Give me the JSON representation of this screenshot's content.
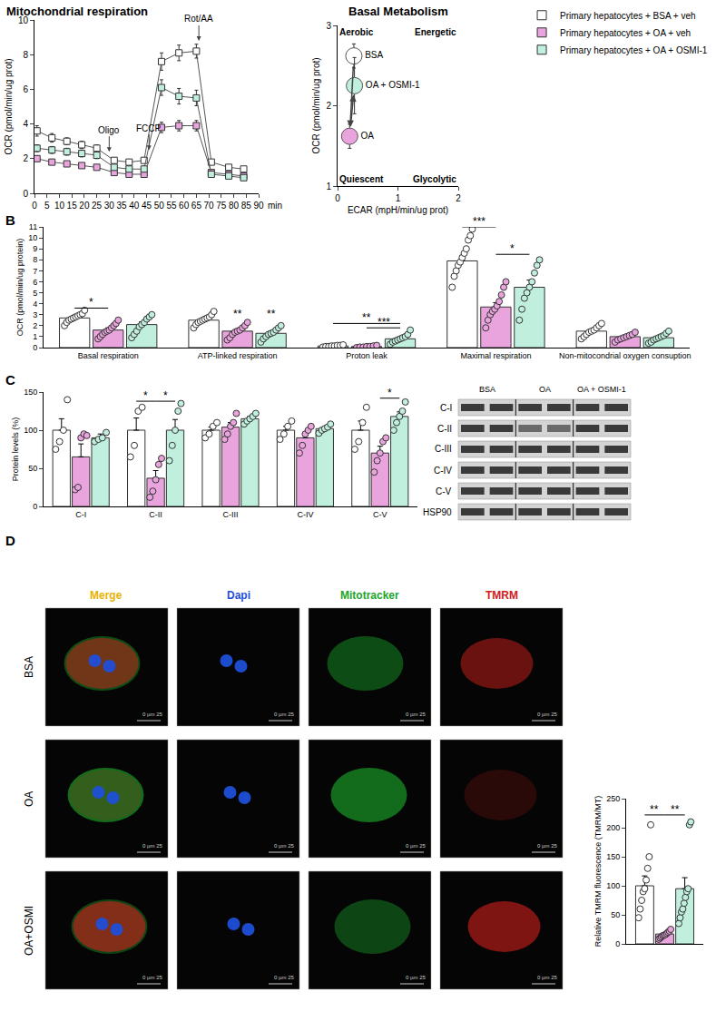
{
  "chart_data": [
    {
      "type": "line",
      "title": "Mitochondrial respiration",
      "x_label": "min",
      "y_label": "OCR (pmol/min/ug prot)",
      "x": [
        1,
        7,
        13,
        19,
        25,
        32,
        38,
        44,
        51,
        58,
        65,
        71,
        78,
        84
      ],
      "xlim": [
        0,
        90
      ],
      "xticks": [
        0,
        5,
        10,
        15,
        20,
        25,
        30,
        35,
        40,
        45,
        50,
        55,
        60,
        65,
        70,
        75,
        80,
        85,
        90
      ],
      "ylim": [
        0,
        10
      ],
      "yticks": [
        0,
        2,
        4,
        6,
        8,
        10
      ],
      "grid": false,
      "marker": "square",
      "legend": "top right",
      "series": [
        {
          "name": "Primary hepatocytes + BSA + veh",
          "color": "#ffffff",
          "values": [
            3.6,
            3.2,
            3.0,
            2.8,
            2.6,
            1.9,
            1.8,
            1.9,
            7.6,
            8.1,
            8.2,
            1.8,
            1.5,
            1.4
          ],
          "errors": [
            0.3,
            0.25,
            0.2,
            0.2,
            0.2,
            0.15,
            0.15,
            0.15,
            0.5,
            0.45,
            0.4,
            0.15,
            0.15,
            0.15
          ]
        },
        {
          "name": "Primary hepatocytes + OA + veh",
          "color": "#e9a4de",
          "values": [
            2.0,
            1.8,
            1.7,
            1.6,
            1.5,
            1.2,
            1.1,
            1.1,
            3.8,
            3.9,
            3.9,
            1.2,
            1.1,
            1.0
          ],
          "errors": [
            0.15,
            0.15,
            0.12,
            0.12,
            0.12,
            0.1,
            0.1,
            0.1,
            0.3,
            0.3,
            0.3,
            0.1,
            0.1,
            0.1
          ]
        },
        {
          "name": "Primary hepatocytes + OA + OSMI-1",
          "color": "#c1efde",
          "values": [
            2.6,
            2.5,
            2.4,
            2.3,
            2.2,
            1.5,
            1.4,
            1.4,
            6.1,
            5.6,
            5.5,
            1.1,
            1.0,
            0.9
          ],
          "errors": [
            0.2,
            0.2,
            0.2,
            0.2,
            0.2,
            0.15,
            0.15,
            0.15,
            0.45,
            0.45,
            0.45,
            0.1,
            0.1,
            0.1
          ]
        }
      ],
      "injections": [
        {
          "label": "Oligo",
          "x": 30,
          "y": 2.4
        },
        {
          "label": "FCCP",
          "x": 46,
          "y": 2.5
        },
        {
          "label": "Rot/AA",
          "x": 66,
          "y": 8.8
        }
      ]
    },
    {
      "type": "scatter",
      "title": "Basal Metabolism",
      "x_label": "ECAR (mpH/min/ug prot)",
      "y_label": "OCR (pmol/min/ug prot)",
      "xlim": [
        0,
        2
      ],
      "xticks": [
        0,
        1,
        2
      ],
      "ylim": [
        1,
        3
      ],
      "yticks": [
        1,
        2,
        3
      ],
      "grid": false,
      "marker": "circle",
      "series": [
        {
          "name": "BSA",
          "color": "#ffffff",
          "x": [
            0.27
          ],
          "values": [
            2.62
          ],
          "x_errors": [
            0.03
          ],
          "errors": [
            0.15
          ]
        },
        {
          "name": "OA + OSMI-1",
          "color": "#c1efde",
          "x": [
            0.28
          ],
          "values": [
            2.25
          ],
          "x_errors": [
            0.03
          ],
          "errors": [
            0.35
          ]
        },
        {
          "name": "OA",
          "color": "#e9a4de",
          "x": [
            0.2
          ],
          "values": [
            1.62
          ],
          "x_errors": [
            0.02
          ],
          "errors": [
            0.15
          ]
        }
      ],
      "quadrant_labels": [
        "Aerobic",
        "Energetic",
        "Quiescent",
        "Glycolytic"
      ],
      "arrows": [
        {
          "from": "BSA",
          "to": "OA"
        },
        {
          "from": "OA",
          "to": "OA + OSMI-1"
        }
      ]
    },
    {
      "type": "bar",
      "y_label": "OCR (pmol/min/ug protein)",
      "categories": [
        "Basal respiration",
        "ATP-linked respiration",
        "Proton leak",
        "Maximal respiration",
        "Non-mitocondrial oxygen consuption"
      ],
      "ylim": [
        0,
        11
      ],
      "yticks": [
        0,
        1,
        2,
        3,
        4,
        5,
        6,
        7,
        8,
        9,
        10,
        11
      ],
      "grid": false,
      "marker": "circle",
      "series": [
        {
          "color": "#ffffff",
          "values": [
            2.7,
            2.5,
            0.15,
            7.9,
            1.5
          ],
          "errors": [
            0.15,
            0.15,
            0.02,
            0.5,
            0.15
          ],
          "points": [
            [
              2.0,
              2.3,
              2.5,
              2.6,
              2.7,
              2.8,
              2.9,
              3.0,
              3.1,
              3.4
            ],
            [
              1.8,
              2.1,
              2.3,
              2.4,
              2.5,
              2.6,
              2.7,
              2.8,
              3.0,
              3.3
            ],
            [
              0.05,
              0.1,
              0.1,
              0.15,
              0.15,
              0.2,
              0.2,
              0.25
            ],
            [
              5.5,
              6.5,
              7.0,
              7.5,
              7.8,
              8.2,
              8.6,
              9.0,
              9.8,
              10.2,
              10.8
            ],
            [
              0.8,
              1.0,
              1.2,
              1.4,
              1.5,
              1.6,
              1.8,
              2.0,
              2.2
            ]
          ]
        },
        {
          "color": "#e9a4de",
          "values": [
            1.6,
            1.5,
            0.1,
            3.7,
            1.0
          ],
          "errors": [
            0.2,
            0.2,
            0.02,
            0.4,
            0.1
          ],
          "points": [
            [
              0.8,
              1.0,
              1.2,
              1.4,
              1.5,
              1.6,
              1.8,
              2.0,
              2.2,
              2.5
            ],
            [
              0.7,
              0.9,
              1.2,
              1.4,
              1.5,
              1.6,
              1.8,
              2.0,
              2.3
            ],
            [
              0.0,
              0.05,
              0.05,
              0.1,
              0.1,
              0.15,
              0.2
            ],
            [
              1.8,
              2.5,
              3.0,
              3.3,
              3.5,
              3.8,
              4.2,
              4.8,
              5.5,
              6.0
            ],
            [
              0.5,
              0.7,
              0.8,
              0.9,
              1.0,
              1.1,
              1.2,
              1.4
            ]
          ]
        },
        {
          "color": "#c1efde",
          "values": [
            2.1,
            1.3,
            0.8,
            5.5,
            0.9
          ],
          "errors": [
            0.25,
            0.15,
            0.12,
            0.65,
            0.12
          ],
          "points": [
            [
              0.9,
              1.2,
              1.5,
              1.9,
              2.1,
              2.3,
              2.6,
              2.8,
              3.0
            ],
            [
              0.5,
              0.8,
              1.0,
              1.2,
              1.3,
              1.4,
              1.6,
              1.8,
              2.0
            ],
            [
              0.3,
              0.5,
              0.6,
              0.7,
              0.8,
              0.9,
              1.0,
              1.2,
              1.6
            ],
            [
              2.5,
              3.5,
              4.5,
              5.0,
              5.5,
              6.0,
              6.8,
              7.5,
              8.0
            ],
            [
              0.4,
              0.5,
              0.7,
              0.8,
              0.9,
              1.0,
              1.1,
              1.3,
              1.5
            ]
          ]
        }
      ],
      "significance": [
        {
          "category": 0,
          "from": 0,
          "to": 1,
          "label": "*",
          "y": 3.6
        },
        {
          "category": 1,
          "from": 1,
          "to": 1,
          "label": "**",
          "y": 2.6
        },
        {
          "category": 1,
          "from": 2,
          "to": 2,
          "label": "**",
          "y": 2.6
        },
        {
          "category": 2,
          "from": 0,
          "to": 2,
          "label": "**",
          "y": 2.2
        },
        {
          "category": 2,
          "from": 1,
          "to": 2,
          "label": "***",
          "y": 1.8
        },
        {
          "category": 3,
          "from": 0,
          "to": 1,
          "label": "***",
          "y": 11
        },
        {
          "category": 3,
          "from": 1,
          "to": 2,
          "label": "*",
          "y": 8.5
        }
      ]
    },
    {
      "type": "bar",
      "y_label": "Protein levels (%)",
      "categories": [
        "C-I",
        "C-II",
        "C-III",
        "C-IV",
        "C-V"
      ],
      "ylim": [
        0,
        150
      ],
      "yticks": [
        0,
        50,
        100,
        150
      ],
      "grid": false,
      "marker": "circle",
      "series": [
        {
          "color": "#ffffff",
          "values": [
            100,
            100,
            100,
            100,
            100
          ],
          "errors": [
            15,
            16,
            4,
            5,
            12
          ],
          "points": [
            [
              75,
              85,
              100,
              140
            ],
            [
              65,
              80,
              125,
              130
            ],
            [
              90,
              95,
              105,
              110
            ],
            [
              88,
              95,
              105,
              112
            ],
            [
              75,
              85,
              110,
              130
            ]
          ]
        },
        {
          "color": "#e9a4de",
          "values": [
            65,
            37,
            104,
            90,
            70
          ],
          "errors": [
            17,
            10,
            6,
            6,
            9
          ],
          "points": [
            [
              22,
              25,
              90,
              95,
              93
            ],
            [
              12,
              20,
              35,
              55,
              63
            ],
            [
              88,
              95,
              105,
              110,
              122
            ],
            [
              70,
              80,
              95,
              100,
              105
            ],
            [
              45,
              60,
              70,
              85,
              90
            ]
          ]
        },
        {
          "color": "#c1efde",
          "values": [
            90,
            100,
            115,
            102,
            118
          ],
          "errors": [
            5,
            14,
            3,
            2,
            6
          ],
          "points": [
            [
              85,
              88,
              90,
              97
            ],
            [
              60,
              80,
              100,
              125,
              135
            ],
            [
              108,
              112,
              115,
              118,
              122
            ],
            [
              96,
              100,
              102,
              104,
              108
            ],
            [
              100,
              110,
              118,
              125,
              137
            ]
          ]
        }
      ],
      "significance": [
        {
          "category": 1,
          "from": 0,
          "to": 1,
          "label": "*",
          "y": 138
        },
        {
          "category": 1,
          "from": 1,
          "to": 2,
          "label": "*",
          "y": 138
        },
        {
          "category": 4,
          "from": 1,
          "to": 2,
          "label": "*",
          "y": 142
        }
      ]
    },
    {
      "type": "bar",
      "y_label": "Relative TMRM fluorescence (TMRM/MT)",
      "categories": [
        null
      ],
      "tick_labels": "y",
      "ylim": [
        0,
        250
      ],
      "yticks": [
        0,
        50,
        100,
        150,
        200,
        250
      ],
      "grid": false,
      "marker": "circle",
      "series": [
        {
          "color": "#ffffff",
          "values": [
            100
          ],
          "errors": [
            17
          ],
          "points": [
            [
              45,
              60,
              75,
              90,
              95,
              110,
              130,
              150,
              205
            ]
          ]
        },
        {
          "color": "#e9a4de",
          "values": [
            17
          ],
          "errors": [
            2
          ],
          "points": [
            [
              8,
              10,
              12,
              14,
              15,
              16,
              18,
              20,
              22,
              25
            ]
          ]
        },
        {
          "color": "#c1efde",
          "values": [
            95
          ],
          "errors": [
            19
          ],
          "points": [
            [
              35,
              45,
              55,
              60,
              70,
              80,
              90,
              95,
              205,
              210
            ]
          ]
        }
      ],
      "significance": [
        {
          "category": 0,
          "from": 0,
          "to": 1,
          "label": "**",
          "y": 222
        },
        {
          "category": 0,
          "from": 1,
          "to": 2,
          "label": "**",
          "y": 222
        }
      ]
    }
  ],
  "panel_labels": [
    "B",
    "C",
    "D"
  ],
  "western_blot": {
    "columns": [
      "BSA",
      "OA",
      "OA + OSMI-1"
    ],
    "rows": [
      "C-I",
      "C-II",
      "C-III",
      "C-IV",
      "C-V",
      "HSP90"
    ]
  },
  "micrographs": {
    "columns": [
      {
        "name": "Merge",
        "color": "#e8b100"
      },
      {
        "name": "Dapi",
        "color": "#1f4fd8"
      },
      {
        "name": "Mitotracker",
        "color": "#1aa52a"
      },
      {
        "name": "TMRM",
        "color": "#d0201b"
      }
    ],
    "rows": [
      "BSA",
      "OA",
      "OA+OSMI"
    ],
    "scale_bar": "0 µm 25"
  }
}
